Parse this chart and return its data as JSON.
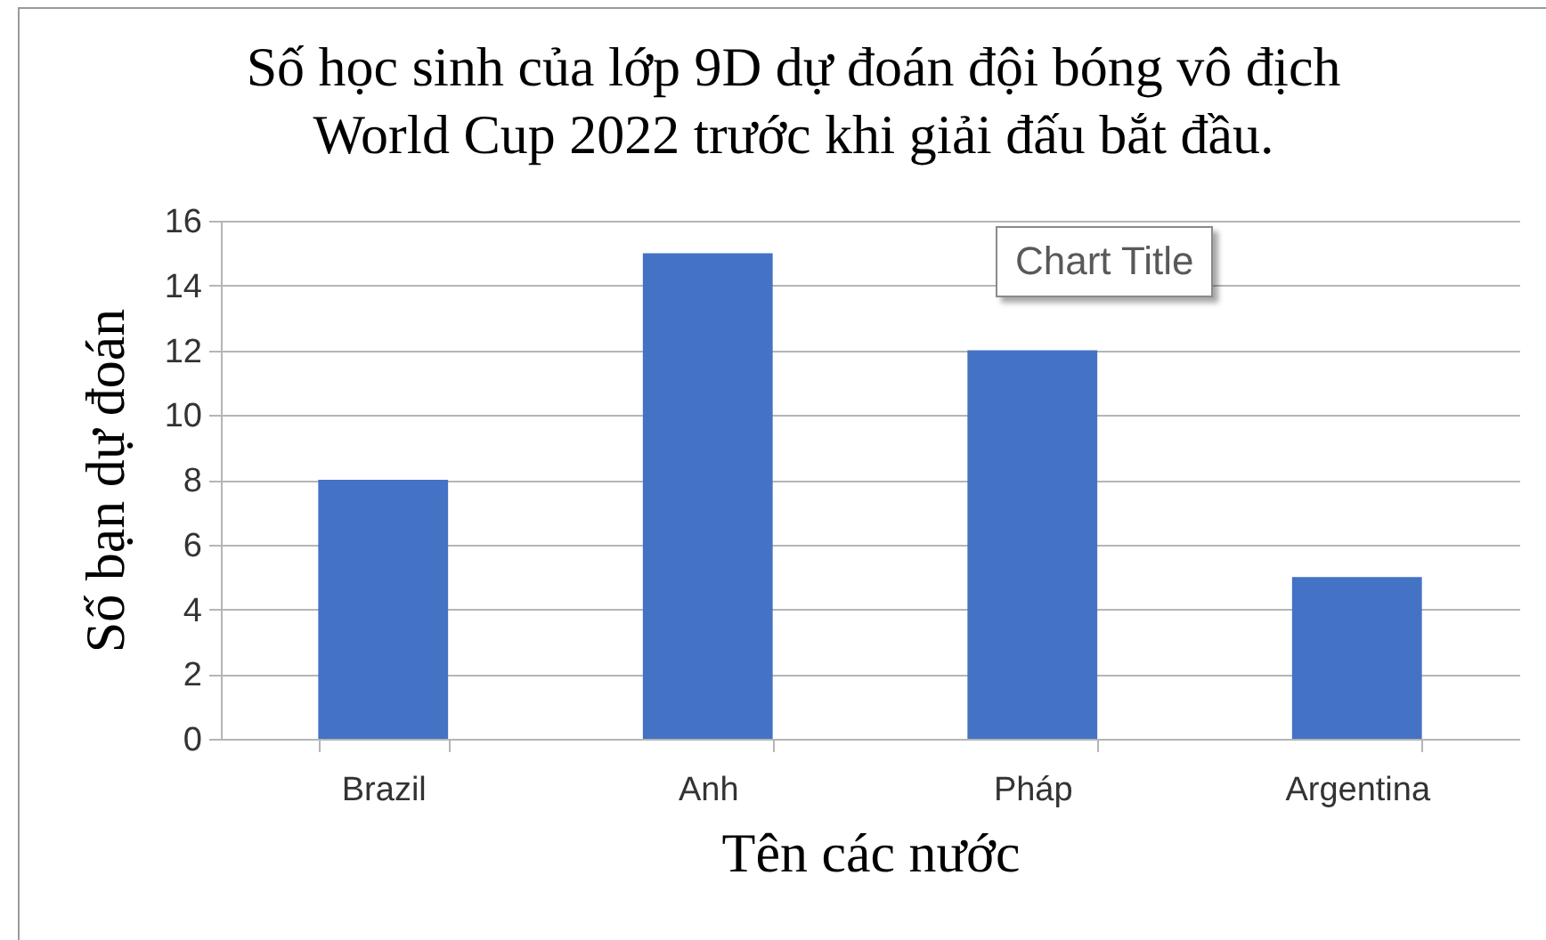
{
  "chart_data": {
    "type": "bar",
    "title": "Số học sinh của lớp 9D dự đoán đội bóng vô địch World Cup 2022 trước khi giải đấu bắt đầu.",
    "xlabel": "Tên các nước",
    "ylabel": "Số bạn dự đoán",
    "categories": [
      "Brazil",
      "Anh",
      "Pháp",
      "Argentina"
    ],
    "values": [
      8,
      15,
      12,
      5
    ],
    "color": "#4472c4",
    "ylim": [
      0,
      16
    ],
    "yticks": [
      0,
      2,
      4,
      6,
      8,
      10,
      12,
      14,
      16
    ],
    "grid": "y",
    "annotations": [
      "Chart Title"
    ]
  }
}
